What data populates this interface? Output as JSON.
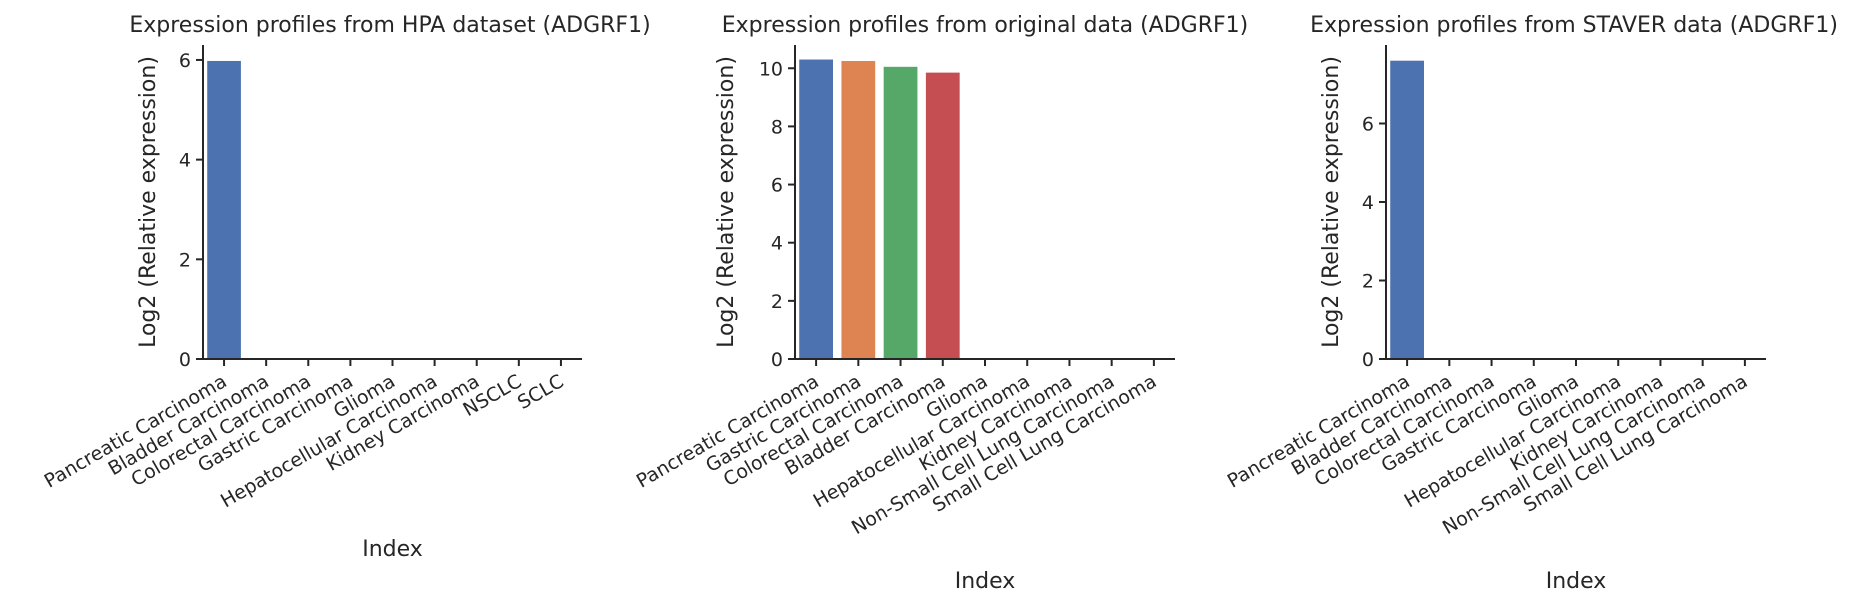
{
  "chart_data": [
    {
      "type": "bar",
      "title": "Expression profiles from HPA dataset (ADGRF1)",
      "xlabel": "Index",
      "ylabel": "Log2 (Relative expression)",
      "categories": [
        "Pancreatic Carcinoma",
        "Bladder Carcinoma",
        "Colorectal Carcinoma",
        "Gastric Carcinoma",
        "Glioma",
        "Hepatocellular Carcinoma",
        "Kidney Carcinoma",
        "NSCLC",
        "SCLC"
      ],
      "values": [
        5.98,
        0,
        0,
        0,
        0,
        0,
        0,
        0,
        0
      ],
      "colors": [
        "#4c72b0",
        "#dd8452",
        "#55a868",
        "#c44e52",
        "#8172b3",
        "#937860",
        "#da8bc3",
        "#8c8c8c",
        "#ccb974"
      ],
      "ylim": [
        0,
        6.3
      ],
      "yticks": [
        0,
        2,
        4,
        6
      ],
      "grid": false
    },
    {
      "type": "bar",
      "title": "Expression profiles from original data (ADGRF1)",
      "xlabel": "Index",
      "ylabel": "Log2 (Relative expression)",
      "categories": [
        "Pancreatic Carcinoma",
        "Gastric Carcinoma",
        "Colorectal Carcinoma",
        "Bladder Carcinoma",
        "Glioma",
        "Hepatocellular Carcinoma",
        "Kidney Carcinoma",
        "Non-Small Cell Lung Carcinoma",
        "Small Cell Lung Carcinoma"
      ],
      "values": [
        10.3,
        10.25,
        10.05,
        9.85,
        0,
        0,
        0,
        0,
        0
      ],
      "colors": [
        "#4c72b0",
        "#dd8452",
        "#55a868",
        "#c44e52",
        "#8172b3",
        "#937860",
        "#da8bc3",
        "#8c8c8c",
        "#ccb974"
      ],
      "ylim": [
        0,
        10.8
      ],
      "yticks": [
        0,
        2,
        4,
        6,
        8,
        10
      ],
      "grid": false
    },
    {
      "type": "bar",
      "title": "Expression profiles from STAVER data (ADGRF1)",
      "xlabel": "Index",
      "ylabel": "Log2 (Relative expression)",
      "categories": [
        "Pancreatic Carcinoma",
        "Bladder Carcinoma",
        "Colorectal Carcinoma",
        "Gastric Carcinoma",
        "Glioma",
        "Hepatocellular Carcinoma",
        "Kidney Carcinoma",
        "Non-Small Cell Lung Carcinoma",
        "Small Cell Lung Carcinoma"
      ],
      "values": [
        7.6,
        0,
        0,
        0,
        0,
        0,
        0,
        0,
        0
      ],
      "colors": [
        "#4c72b0",
        "#dd8452",
        "#55a868",
        "#c44e52",
        "#8172b3",
        "#937860",
        "#da8bc3",
        "#8c8c8c",
        "#ccb974"
      ],
      "ylim": [
        0,
        8.0
      ],
      "yticks": [
        0,
        2,
        4,
        6
      ],
      "grid": false
    }
  ]
}
